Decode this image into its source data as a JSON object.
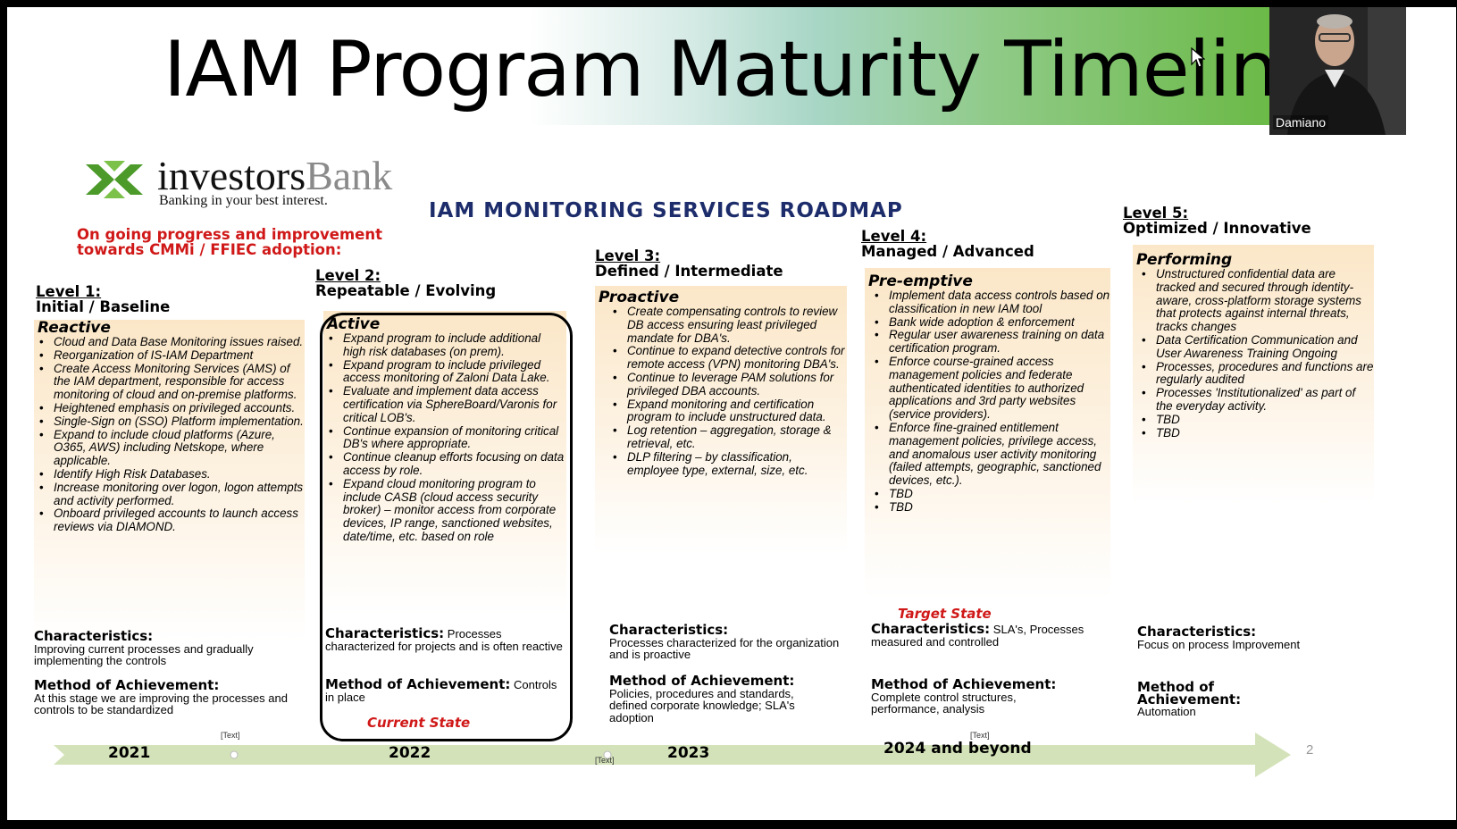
{
  "slide": {
    "title": "IAM Program Maturity Timeline",
    "logo": {
      "name_part1": "investors",
      "name_part2": "Bank",
      "tagline": "Banking in your best interest."
    },
    "roadmap_title": "IAM MONITORING SERVICES ROADMAP",
    "progress_note": [
      "On going progress and improvement",
      "towards CMMi / FFIEC  adoption:"
    ],
    "levels": [
      {
        "label": "Level 1:",
        "sub": "Initial / Baseline",
        "box_title": "Reactive",
        "items": [
          "Cloud and Data Base Monitoring issues raised.",
          "Reorganization of IS-IAM Department",
          "Create Access Monitoring Services (AMS) of the IAM department, responsible for access monitoring of cloud and on-premise platforms.",
          "Heightened emphasis on privileged accounts.",
          "Single-Sign on (SSO) Platform implementation.",
          "Expand to include cloud platforms (Azure, O365, AWS) including Netskope, where applicable.",
          "Identify High Risk Databases.",
          "Increase monitoring over logon, logon attempts and activity performed.",
          "Onboard privileged accounts to launch access reviews via DIAMOND."
        ],
        "char_label": "Characteristics:",
        "char_text": "Improving current processes and gradually implementing the controls",
        "meth_label": "Method of Achievement:",
        "meth_text": "At this stage we are improving the processes and controls to be standardized"
      },
      {
        "label": "Level 2:",
        "sub": "Repeatable / Evolving",
        "box_title": "Active",
        "items": [
          "Expand program to include additional high risk databases (on prem).",
          "Expand program to include privileged access monitoring of Zaloni Data Lake.",
          "Evaluate and implement data access certification via SphereBoard/Varonis for critical LOB's.",
          "Continue expansion of monitoring critical DB's where appropriate.",
          "Continue cleanup efforts focusing on data access by role.",
          "Expand cloud monitoring program to include CASB (cloud access security broker) – monitor access from corporate devices, IP range, sanctioned websites, date/time, etc. based on role"
        ],
        "char_label": "Characteristics:",
        "char_text": "Processes characterized for projects and is often reactive",
        "meth_label": "Method of Achievement:",
        "meth_text": "Controls in place",
        "state": "Current  State"
      },
      {
        "label": "Level 3:",
        "sub": "Defined / Intermediate",
        "box_title": "Proactive",
        "items": [
          "Create compensating controls to review DB access ensuring least privileged mandate for DBA's.",
          "Continue to expand detective controls for remote access (VPN) monitoring DBA's.",
          "Continue to leverage PAM solutions for privileged DBA accounts.",
          "Expand monitoring and certification program to include unstructured data.",
          "Log retention – aggregation, storage & retrieval, etc.",
          "DLP filtering – by classification, employee type, external, size, etc."
        ],
        "char_label": "Characteristics:",
        "char_text": "Processes characterized for the organization and is proactive",
        "meth_label": "Method of Achievement:",
        "meth_text": "Policies, procedures and standards, defined corporate knowledge; SLA's adoption"
      },
      {
        "label": "Level 4:",
        "sub": "Managed / Advanced",
        "box_title": "Pre-emptive",
        "items": [
          "Implement data access controls based on classification in new IAM tool",
          "Bank wide adoption & enforcement",
          "Regular user awareness training on data certification program.",
          "Enforce course-grained access management policies and federate authenticated identities to authorized applications and 3rd party websites (service providers).",
          "Enforce fine-grained entitlement management policies, privilege access, and anomalous user activity monitoring (failed attempts, geographic, sanctioned devices, etc.).",
          "TBD",
          "TBD"
        ],
        "char_label": "Characteristics:",
        "char_text": "SLA's, Processes measured and controlled",
        "meth_label": "Method of Achievement:",
        "meth_text": "Complete control structures, performance, analysis",
        "state": "Target State"
      },
      {
        "label": "Level 5:",
        "sub": "Optimized / Innovative",
        "box_title": "Performing",
        "items": [
          "Unstructured confidential data are tracked and secured through identity-aware, cross-platform storage systems that protects against internal threats, tracks changes",
          "Data Certification Communication and User Awareness Training Ongoing",
          "Processes, procedures and functions are regularly audited",
          "Processes 'Institutionalized' as part of the everyday activity.",
          "TBD",
          "TBD"
        ],
        "char_label": "Characteristics:",
        "char_text": "Focus on process Improvement",
        "meth_label": "Method of Achievement:",
        "meth_text": "Automation"
      }
    ],
    "timeline": {
      "years": [
        "2021",
        "2022",
        "2023",
        "2024 and beyond"
      ],
      "placeholders": [
        "[Text]",
        "[Text]",
        "[Text]"
      ]
    },
    "page_number": "2"
  },
  "video_tile": {
    "participant_name": "Damiano"
  },
  "colors": {
    "accent_red": "#d01818",
    "roadmap_blue": "#1d2d6b",
    "title_green": "#66b73e",
    "timeline_green": "#d3e2b8"
  },
  "icons": [
    "logo-mark-icon",
    "mouse-cursor-icon"
  ]
}
